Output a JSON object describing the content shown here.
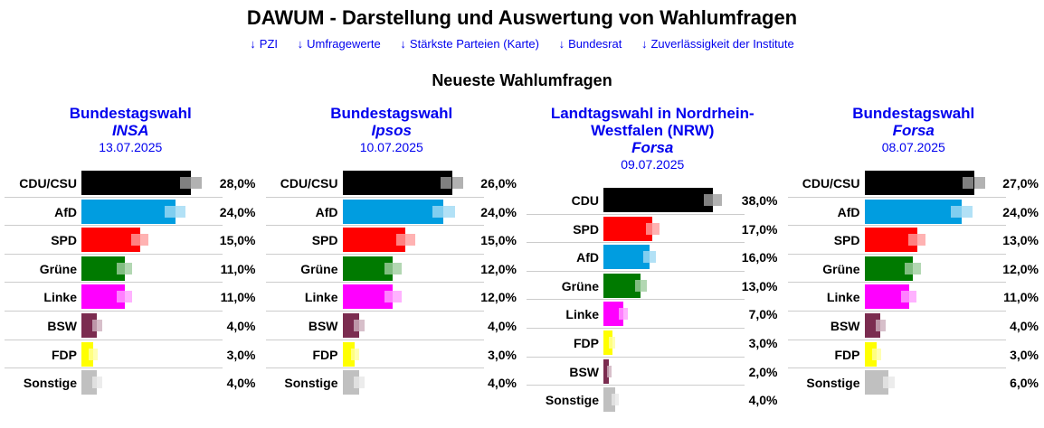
{
  "page": {
    "title": "DAWUM - Darstellung und Auswertung von Wahlumfragen",
    "section_title": "Neueste Wahlumfragen",
    "nav": [
      {
        "arrow": "↓",
        "label": "PZI"
      },
      {
        "arrow": "↓",
        "label": "Umfragewerte"
      },
      {
        "arrow": "↓",
        "label": "Stärkste Parteien (Karte)"
      },
      {
        "arrow": "↓",
        "label": "Bundesrat"
      },
      {
        "arrow": "↓",
        "label": "Zuverlässigkeit der Institute"
      }
    ]
  },
  "ui_colors": {
    "link_blue": "#0000EE",
    "separator": "#CCCCCC",
    "text": "#000000",
    "background": "#FFFFFF"
  },
  "party_colors": {
    "CDU/CSU": "#000000",
    "CDU": "#000000",
    "AfD": "#009DE0",
    "SPD": "#FF0000",
    "Grüne": "#007A00",
    "Linke": "#FF00FF",
    "BSW": "#7B2C50",
    "FDP": "#FFFF00",
    "Sonstige": "#C0C0C0"
  },
  "chart_data": [
    {
      "type": "bar",
      "orientation": "horizontal",
      "title": "Bundestagswahl",
      "institute": "INSA",
      "date": "13.07.2025",
      "unit": "%",
      "categories": [
        "CDU/CSU",
        "AfD",
        "SPD",
        "Grüne",
        "Linke",
        "BSW",
        "FDP",
        "Sonstige"
      ],
      "values": [
        28,
        24,
        15,
        11,
        11,
        4,
        3,
        4
      ],
      "value_labels": [
        "28,0%",
        "24,0%",
        "15,0%",
        "11,0%",
        "11,0%",
        "4,0%",
        "3,0%",
        "4,0%"
      ]
    },
    {
      "type": "bar",
      "orientation": "horizontal",
      "title": "Bundestagswahl",
      "institute": "Ipsos",
      "date": "10.07.2025",
      "unit": "%",
      "categories": [
        "CDU/CSU",
        "AfD",
        "SPD",
        "Grüne",
        "Linke",
        "BSW",
        "FDP",
        "Sonstige"
      ],
      "values": [
        26,
        24,
        15,
        12,
        12,
        4,
        3,
        4
      ],
      "value_labels": [
        "26,0%",
        "24,0%",
        "15,0%",
        "12,0%",
        "12,0%",
        "4,0%",
        "3,0%",
        "4,0%"
      ]
    },
    {
      "type": "bar",
      "orientation": "horizontal",
      "title": "Landtagswahl in Nordrhein-\nWestfalen (NRW)",
      "institute": "Forsa",
      "date": "09.07.2025",
      "unit": "%",
      "categories": [
        "CDU",
        "SPD",
        "AfD",
        "Grüne",
        "Linke",
        "FDP",
        "BSW",
        "Sonstige"
      ],
      "values": [
        38,
        17,
        16,
        13,
        7,
        3,
        2,
        4
      ],
      "value_labels": [
        "38,0%",
        "17,0%",
        "16,0%",
        "13,0%",
        "7,0%",
        "3,0%",
        "2,0%",
        "4,0%"
      ]
    },
    {
      "type": "bar",
      "orientation": "horizontal",
      "title": "Bundestagswahl",
      "institute": "Forsa",
      "date": "08.07.2025",
      "unit": "%",
      "categories": [
        "CDU/CSU",
        "AfD",
        "SPD",
        "Grüne",
        "Linke",
        "BSW",
        "FDP",
        "Sonstige"
      ],
      "values": [
        27,
        24,
        13,
        12,
        11,
        4,
        3,
        6
      ],
      "value_labels": [
        "27,0%",
        "24,0%",
        "13,0%",
        "12,0%",
        "11,0%",
        "4,0%",
        "3,0%",
        "6,0%"
      ]
    }
  ]
}
